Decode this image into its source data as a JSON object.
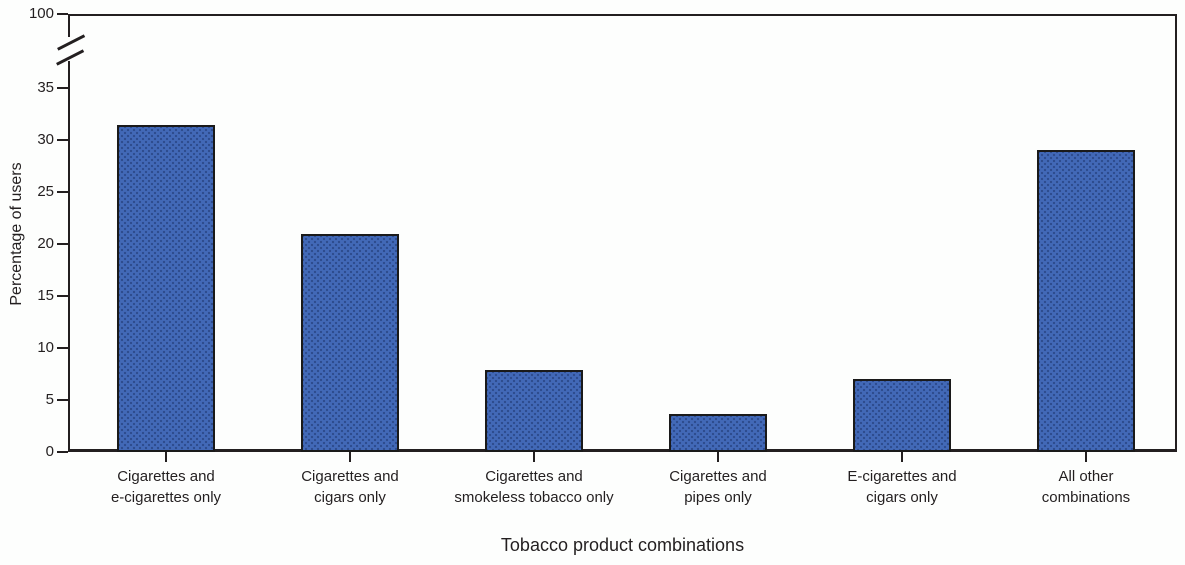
{
  "chart_data": {
    "type": "bar",
    "title": "",
    "xlabel": "Tobacco product combinations",
    "ylabel": "Percentage of users",
    "categories": [
      "Cigarettes and\ne-cigarettes only",
      "Cigarettes and\ncigars only",
      "Cigarettes and\nsmokeless tobacco only",
      "Cigarettes and\npipes only",
      "E-cigarettes and\ncigars only",
      "All other\ncombinations"
    ],
    "values": [
      31.4,
      21.0,
      7.9,
      3.7,
      7.0,
      29.0
    ],
    "y_ticks_linear": [
      0,
      5,
      10,
      15,
      20,
      25,
      30,
      35
    ],
    "y_top_tick_label": "100",
    "axis_break": true,
    "ylim_linear": [
      0,
      35
    ],
    "grid": "off",
    "legend": "none",
    "bar_fill_color": "#4269b7",
    "bar_border_color": "#1a1a1a",
    "axis_color": "#231f20"
  }
}
